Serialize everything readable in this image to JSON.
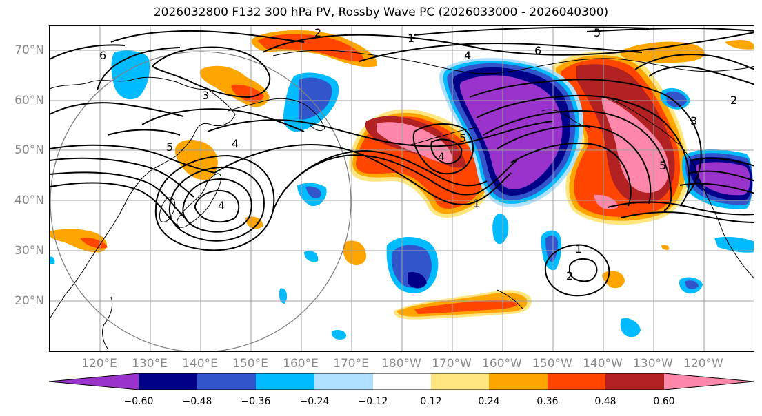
{
  "title": "2026032800 F132 300 hPa PV, Rossby Wave PC (2026033000 - 2026040300)",
  "latitude_labels": [
    "70°N",
    "60°N",
    "50°N",
    "40°N",
    "30°N",
    "20°N"
  ],
  "longitude_labels": [
    "120°E",
    "130°E",
    "140°E",
    "150°E",
    "160°E",
    "170°E",
    "180°W",
    "170°W",
    "160°W",
    "150°W",
    "140°W",
    "130°W",
    "120°W"
  ],
  "contour_labels": [
    "1",
    "2",
    "3",
    "4",
    "5",
    "6"
  ],
  "colorbar": {
    "tick_labels": [
      "−0.60",
      "−0.48",
      "−0.36",
      "−0.24",
      "−0.12",
      "0.12",
      "0.24",
      "0.36",
      "0.48",
      "0.60"
    ],
    "colors": [
      "#9933cc",
      "#000088",
      "#3355cc",
      "#00bbff",
      "#b0e0ff",
      "#ffffff",
      "#ffe680",
      "#ffa500",
      "#ff4500",
      "#b22222",
      "#ff88aa"
    ]
  },
  "colors": {
    "contour": "#000000",
    "grid": "#a0a0a0",
    "circle": "#808080"
  }
}
